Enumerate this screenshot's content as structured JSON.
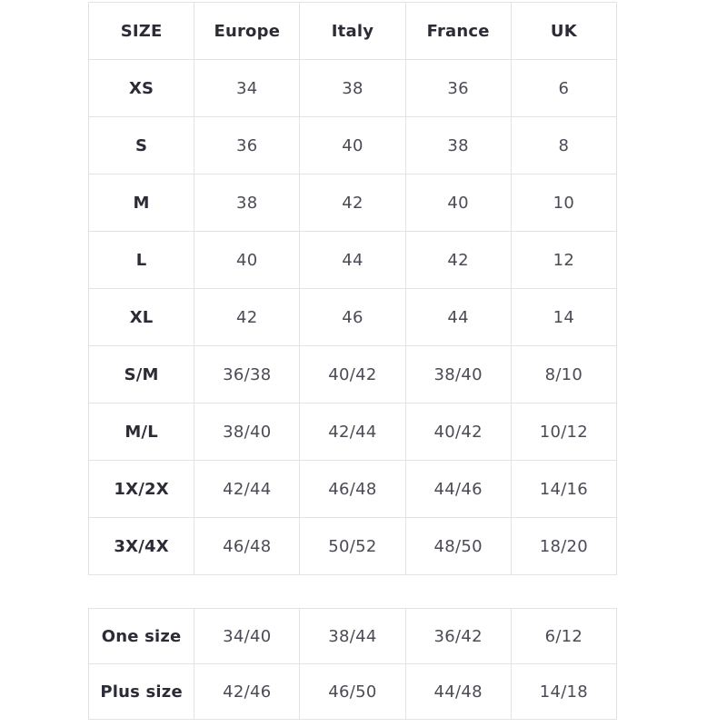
{
  "colors": {
    "background": "#ffffff",
    "border": "#e3e3e3",
    "header_text": "#2c2c37",
    "cell_text": "#4b4b56"
  },
  "main_table": {
    "headers": [
      "SIZE",
      "Europe",
      "Italy",
      "France",
      "UK"
    ],
    "rows": [
      {
        "label": "XS",
        "values": [
          "34",
          "38",
          "36",
          "6"
        ]
      },
      {
        "label": "S",
        "values": [
          "36",
          "40",
          "38",
          "8"
        ]
      },
      {
        "label": "M",
        "values": [
          "38",
          "42",
          "40",
          "10"
        ]
      },
      {
        "label": "L",
        "values": [
          "40",
          "44",
          "42",
          "12"
        ]
      },
      {
        "label": "XL",
        "values": [
          "42",
          "46",
          "44",
          "14"
        ]
      },
      {
        "label": "S/M",
        "values": [
          "36/38",
          "40/42",
          "38/40",
          "8/10"
        ]
      },
      {
        "label": "M/L",
        "values": [
          "38/40",
          "42/44",
          "40/42",
          "10/12"
        ]
      },
      {
        "label": "1X/2X",
        "values": [
          "42/44",
          "46/48",
          "44/46",
          "14/16"
        ]
      },
      {
        "label": "3X/4X",
        "values": [
          "46/48",
          "50/52",
          "48/50",
          "18/20"
        ]
      }
    ]
  },
  "secondary_table": {
    "rows": [
      {
        "label": "One size",
        "values": [
          "34/40",
          "38/44",
          "36/42",
          "6/12"
        ]
      },
      {
        "label": "Plus size",
        "values": [
          "42/46",
          "46/50",
          "44/48",
          "14/18"
        ]
      }
    ]
  }
}
